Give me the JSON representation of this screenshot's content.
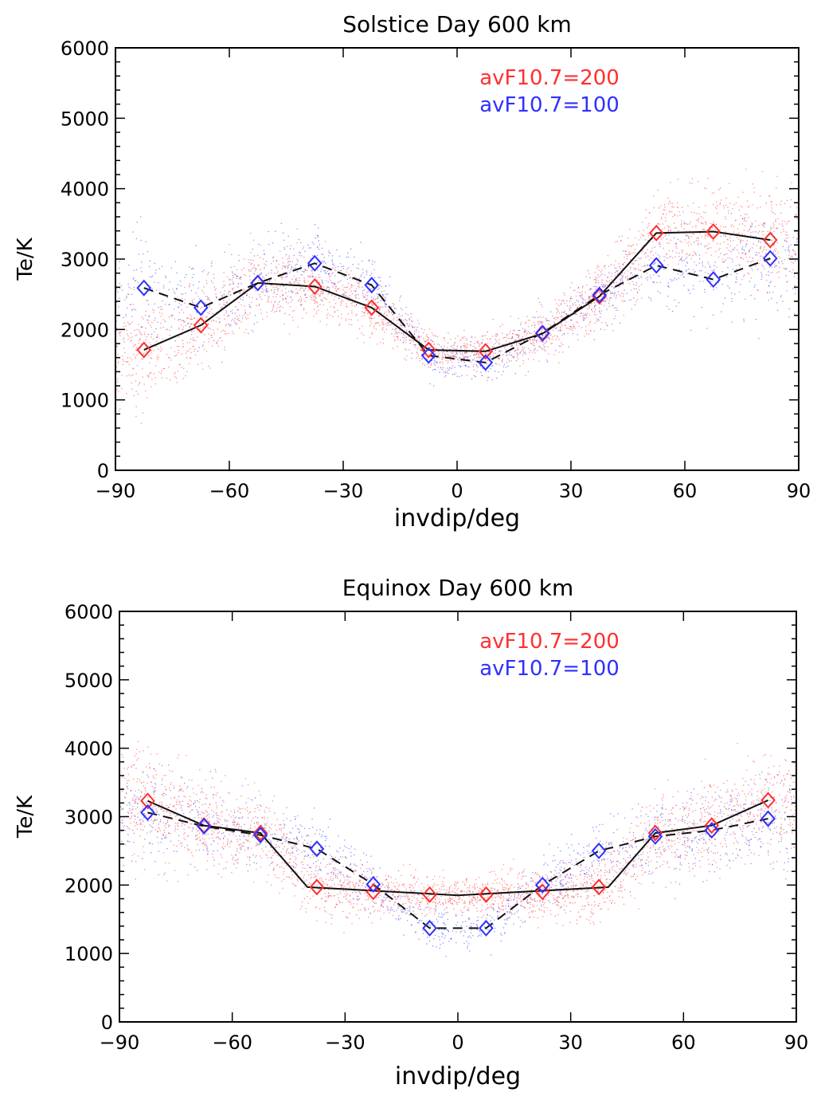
{
  "chart_data": [
    {
      "type": "scatter",
      "title": "Solstice   Day    600 km",
      "xlabel": "invdip/deg",
      "ylabel": "Te/K",
      "xlim": [
        -90,
        90
      ],
      "ylim": [
        0,
        6000
      ],
      "xticks": [
        -90,
        -60,
        -30,
        0,
        30,
        60,
        90
      ],
      "yticks": [
        0,
        1000,
        2000,
        3000,
        4000,
        5000,
        6000
      ],
      "legend": [
        {
          "label": "avF10.7=200",
          "color": "#ff3030"
        },
        {
          "label": "avF10.7=100",
          "color": "#3030ff"
        }
      ],
      "x": [
        -82.5,
        -67.5,
        -52.5,
        -37.5,
        -22.5,
        -7.5,
        7.5,
        22.5,
        37.5,
        52.5,
        67.5,
        82.5
      ],
      "series": [
        {
          "name": "avF10.7=200",
          "color": "#ff3030",
          "line": "solid",
          "values": [
            1710,
            2060,
            2660,
            2610,
            2310,
            1710,
            1690,
            1940,
            2470,
            3370,
            3390,
            3270
          ]
        },
        {
          "name": "avF10.7=100",
          "color": "#3030ff",
          "line": "dashed",
          "values": [
            2590,
            2310,
            2660,
            2940,
            2630,
            1630,
            1530,
            1950,
            2490,
            2910,
            2710,
            3010
          ]
        }
      ]
    },
    {
      "type": "scatter",
      "title": "Equinox   Day    600 km",
      "xlabel": "invdip/deg",
      "ylabel": "Te/K",
      "xlim": [
        -90,
        90
      ],
      "ylim": [
        0,
        6000
      ],
      "xticks": [
        -90,
        -60,
        -30,
        0,
        30,
        60,
        90
      ],
      "yticks": [
        0,
        1000,
        2000,
        3000,
        4000,
        5000,
        6000
      ],
      "legend": [
        {
          "label": "avF10.7=200",
          "color": "#ff3030"
        },
        {
          "label": "avF10.7=100",
          "color": "#3030ff"
        }
      ],
      "x": [
        -82.5,
        -67.5,
        -52.5,
        -37.5,
        -22.5,
        -7.5,
        7.5,
        22.5,
        37.5,
        52.5,
        67.5,
        82.5
      ],
      "series": [
        {
          "name": "avF10.7=200",
          "color": "#ff3030",
          "line": "solid",
          "values": [
            3230,
            2870,
            2760,
            1970,
            1900,
            1860,
            1860,
            1900,
            1970,
            2760,
            2870,
            3240
          ]
        },
        {
          "name": "avF10.7=100",
          "color": "#3030ff",
          "line": "dashed",
          "values": [
            3060,
            2860,
            2730,
            2530,
            2010,
            1370,
            1370,
            2000,
            2500,
            2710,
            2800,
            2970
          ]
        }
      ]
    }
  ]
}
